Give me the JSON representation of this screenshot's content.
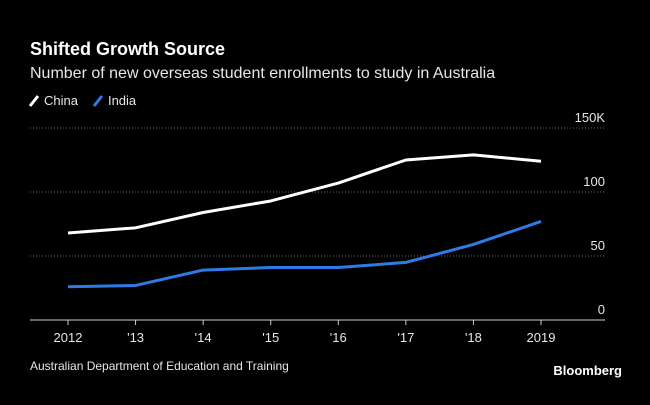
{
  "chart_data": {
    "type": "line",
    "title": "Shifted Growth Source",
    "subtitle": "Number of new overseas student enrollments to study in Australia",
    "source": "Australian Department of Education and Training",
    "brand": "Bloomberg",
    "categories": [
      "2012",
      "'13",
      "'14",
      "'15",
      "'16",
      "'17",
      "'18",
      "2019"
    ],
    "series": [
      {
        "name": "China",
        "color": "#ffffff",
        "values": [
          68,
          72,
          84,
          93,
          107,
          125,
          129,
          124
        ]
      },
      {
        "name": "India",
        "color": "#2f7be6",
        "values": [
          26,
          27,
          39,
          41,
          41,
          45,
          59,
          77
        ]
      }
    ],
    "ylim": [
      0,
      150
    ],
    "yticks": [
      0,
      50,
      100,
      {
        "value": 150,
        "label": "150K"
      }
    ],
    "grid": true
  }
}
